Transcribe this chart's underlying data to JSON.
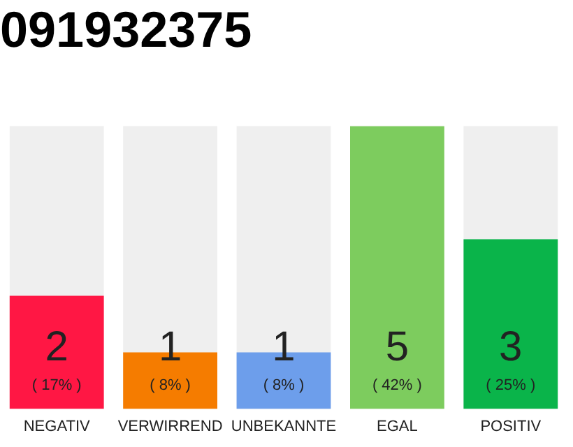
{
  "chart_data": {
    "type": "bar",
    "title": "091932375",
    "categories": [
      "NEGATIV",
      "VERWIRREND",
      "UNBEKANNTE",
      "EGAL",
      "POSITIV"
    ],
    "values": [
      2,
      1,
      1,
      5,
      3
    ],
    "colors": [
      "#ff1744",
      "#f57c00",
      "#6d9eeb",
      "#7dcc5e",
      "#0ab44a"
    ],
    "ylim": [
      0,
      5
    ],
    "data_labels": true,
    "grid": false,
    "legend": false,
    "annotations": [
      "( 17% )",
      "( 8% )",
      "( 8% )",
      "( 42% )",
      "( 25% )"
    ]
  }
}
